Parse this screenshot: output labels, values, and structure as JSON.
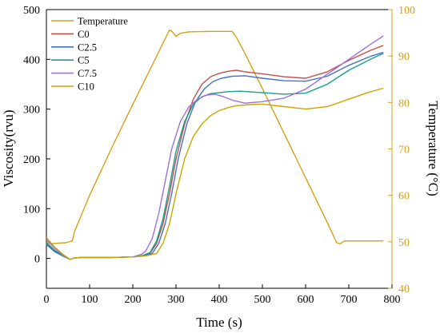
{
  "chart_data": {
    "type": "line",
    "xlabel": "Time (s)",
    "ylabel": "Viscosity(rvu)",
    "y2label": "Temperature (°C)",
    "xlim": [
      0,
      800
    ],
    "ylim": [
      -60,
      500
    ],
    "y2lim": [
      40,
      100
    ],
    "xticks": [
      "0",
      "100",
      "200",
      "300",
      "400",
      "500",
      "600",
      "700",
      "800"
    ],
    "yticks": [
      "0",
      "100",
      "200",
      "300",
      "400",
      "500"
    ],
    "y2ticks": [
      "40",
      "50",
      "60",
      "70",
      "80",
      "90",
      "100"
    ],
    "legend_position": "top-left",
    "series": [
      {
        "name": "Temperature",
        "axis": "right",
        "color": "#d4a017",
        "x": [
          0,
          10,
          25,
          45,
          60,
          65,
          100,
          150,
          200,
          250,
          285,
          292,
          300,
          310,
          330,
          380,
          430,
          440,
          460,
          500,
          550,
          600,
          650,
          672,
          680,
          690,
          700,
          720,
          780
        ],
        "y": [
          50,
          49.6,
          49.7,
          49.8,
          50.2,
          52.2,
          60,
          70,
          79.6,
          89,
          95.6,
          95.2,
          94.2,
          94.9,
          95.2,
          95.3,
          95.3,
          94.0,
          90.5,
          83,
          73.4,
          63.8,
          54.2,
          49.8,
          49.6,
          50.2,
          50.2,
          50.2,
          50.2
        ]
      },
      {
        "name": "C0",
        "axis": "left",
        "color": "#c0504d",
        "x": [
          0,
          20,
          40,
          55,
          65,
          80,
          100,
          150,
          200,
          220,
          240,
          255,
          270,
          285,
          300,
          320,
          340,
          360,
          380,
          400,
          420,
          440,
          460,
          500,
          550,
          600,
          650,
          700,
          750,
          780
        ],
        "y": [
          30,
          15,
          5,
          -2,
          1,
          2,
          2,
          2,
          3,
          5,
          10,
          30,
          70,
          130,
          200,
          270,
          320,
          350,
          365,
          372,
          376,
          378,
          375,
          371,
          365,
          362,
          375,
          398,
          418,
          428
        ]
      },
      {
        "name": "C2.5",
        "axis": "left",
        "color": "#4472c4",
        "x": [
          0,
          20,
          40,
          55,
          65,
          80,
          100,
          150,
          200,
          220,
          245,
          260,
          275,
          290,
          305,
          325,
          345,
          365,
          385,
          405,
          430,
          460,
          500,
          550,
          600,
          650,
          700,
          750,
          780
        ],
        "y": [
          28,
          13,
          4,
          -2,
          1,
          2,
          2,
          2,
          3,
          5,
          10,
          30,
          70,
          130,
          200,
          270,
          315,
          340,
          355,
          362,
          366,
          367,
          362,
          357,
          356,
          366,
          388,
          406,
          414
        ]
      },
      {
        "name": "C5",
        "axis": "left",
        "color": "#1a9e8f",
        "x": [
          0,
          20,
          40,
          55,
          65,
          80,
          100,
          150,
          200,
          220,
          240,
          255,
          270,
          285,
          300,
          320,
          340,
          360,
          380,
          400,
          420,
          450,
          500,
          550,
          600,
          650,
          700,
          750,
          780
        ],
        "y": [
          32,
          16,
          5,
          -2,
          1,
          2,
          2,
          2,
          3,
          5,
          12,
          35,
          80,
          145,
          215,
          275,
          310,
          325,
          331,
          333,
          335,
          336,
          333,
          330,
          332,
          350,
          378,
          400,
          412
        ]
      },
      {
        "name": "C7.5",
        "axis": "left",
        "color": "#a070d8",
        "x": [
          0,
          20,
          40,
          55,
          65,
          80,
          100,
          150,
          200,
          220,
          230,
          245,
          260,
          275,
          290,
          310,
          330,
          350,
          370,
          390,
          410,
          430,
          460,
          500,
          550,
          600,
          650,
          700,
          750,
          780
        ],
        "y": [
          38,
          20,
          6,
          -2,
          1,
          2,
          2,
          2,
          3,
          8,
          15,
          40,
          90,
          155,
          220,
          275,
          305,
          320,
          328,
          330,
          325,
          318,
          312,
          315,
          322,
          340,
          370,
          400,
          430,
          447
        ]
      },
      {
        "name": "C10",
        "axis": "left",
        "color": "#c8a800",
        "x": [
          0,
          20,
          40,
          55,
          65,
          80,
          100,
          150,
          200,
          230,
          255,
          270,
          285,
          300,
          320,
          340,
          360,
          380,
          400,
          420,
          440,
          470,
          500,
          550,
          600,
          650,
          700,
          750,
          780
        ],
        "y": [
          42,
          22,
          7,
          -2,
          1,
          2,
          2,
          2,
          3,
          5,
          10,
          30,
          70,
          130,
          200,
          245,
          270,
          287,
          297,
          303,
          307,
          309,
          310,
          305,
          300,
          305,
          320,
          335,
          342
        ]
      }
    ]
  }
}
